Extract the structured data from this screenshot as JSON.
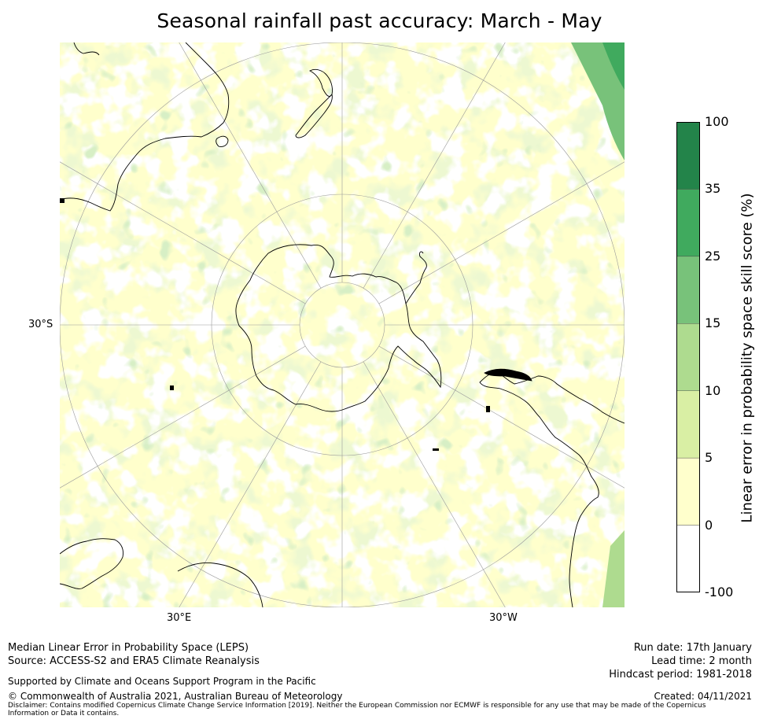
{
  "title": "Seasonal rainfall past accuracy: March - May",
  "map": {
    "lat_label": "30°S",
    "lon_labels": [
      "30°E",
      "30°W"
    ],
    "colors": {
      "land_outline": "#000000",
      "grid": "#9a9a9a"
    }
  },
  "colorbar": {
    "label": "Linear error in probability space skill score (%)",
    "ticks": [
      "100",
      "35",
      "25",
      "15",
      "10",
      "5",
      "0",
      "-100"
    ],
    "bins": [
      {
        "range": "35 to 100",
        "color": "#23844a"
      },
      {
        "range": "25 to 35",
        "color": "#40aa5e"
      },
      {
        "range": "15 to 25",
        "color": "#78c27a"
      },
      {
        "range": "10 to 15",
        "color": "#aedb8f"
      },
      {
        "range": "5 to 10",
        "color": "#d9efa4"
      },
      {
        "range": "0 to 5",
        "color": "#ffffcc"
      },
      {
        "range": "-100 to 0",
        "color": "#ffffff"
      }
    ]
  },
  "footer": {
    "left_line1": "Median Linear Error in Probability Space (LEPS)",
    "left_line2": "Source: ACCESS-S2 and ERA5 Climate Reanalysis",
    "support": "Supported by Climate and Oceans Support Program in the Pacific",
    "copyright": "© Commonwealth of Australia 2021, Australian Bureau of Meteorology",
    "run_date": "Run date: 17th January",
    "lead_time": "Lead time: 2 month",
    "hindcast": "Hindcast period: 1981-2018",
    "created": "Created: 04/11/2021",
    "disclaimer": "Disclaimer: Contains modified Copernicus Climate Change Service Information [2019]. Neither the European Commission nor ECMWF is responsible for any use that may be made of the Copernicus Information or Data it contains."
  }
}
